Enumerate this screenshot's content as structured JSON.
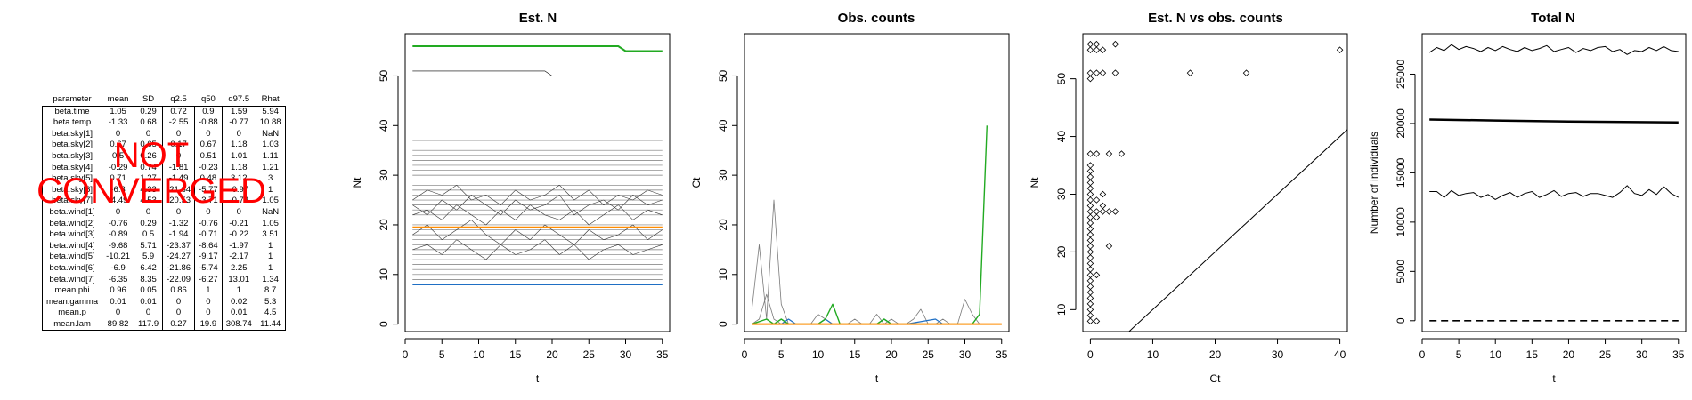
{
  "table": {
    "headers": [
      "parameter",
      "mean",
      "SD",
      "q2.5",
      "q50",
      "q97.5",
      "Rhat"
    ],
    "rows": [
      [
        "beta.time",
        "1.05",
        "0.29",
        "0.72",
        "0.9",
        "1.59",
        "5.94"
      ],
      [
        "beta.temp",
        "-1.33",
        "0.68",
        "-2.55",
        "-0.88",
        "-0.77",
        "10.88"
      ],
      [
        "beta.sky[1]",
        "0",
        "0",
        "0",
        "0",
        "0",
        "NaN"
      ],
      [
        "beta.sky[2]",
        "0.67",
        "0.65",
        "0.17",
        "0.67",
        "1.18",
        "1.03"
      ],
      [
        "beta.sky[3]",
        "0.5",
        "0.26",
        "0",
        "0.51",
        "1.01",
        "1.11"
      ],
      [
        "beta.sky[4]",
        "-0.29",
        "0.74",
        "-1.81",
        "-0.23",
        "1.18",
        "1.21"
      ],
      [
        "beta.sky[5]",
        "0.71",
        "1.27",
        "-1.49",
        "0.48",
        "3.12",
        "3"
      ],
      [
        "beta.sky[6]",
        "-6.3",
        "4.33",
        "-21.64",
        "-5.77",
        "-0.97",
        "1"
      ],
      [
        "beta.sky[7]",
        "-4.49",
        "4.53",
        "-20.53",
        "-3.71",
        "-0.78",
        "1.05"
      ],
      [
        "beta.wind[1]",
        "0",
        "0",
        "0",
        "0",
        "0",
        "NaN"
      ],
      [
        "beta.wind[2]",
        "-0.76",
        "0.29",
        "-1.32",
        "-0.76",
        "-0.21",
        "1.05"
      ],
      [
        "beta.wind[3]",
        "-0.89",
        "0.5",
        "-1.94",
        "-0.71",
        "-0.22",
        "3.51"
      ],
      [
        "beta.wind[4]",
        "-9.68",
        "5.71",
        "-23.37",
        "-8.64",
        "-1.97",
        "1"
      ],
      [
        "beta.wind[5]",
        "-10.21",
        "5.9",
        "-24.27",
        "-9.17",
        "-2.17",
        "1"
      ],
      [
        "beta.wind[6]",
        "-6.9",
        "6.42",
        "-21.86",
        "-5.74",
        "2.25",
        "1"
      ],
      [
        "beta.wind[7]",
        "-6.35",
        "8.35",
        "-22.09",
        "-6.27",
        "13.01",
        "1.34"
      ],
      [
        "mean.phi",
        "0.96",
        "0.05",
        "0.86",
        "1",
        "1",
        "8.7"
      ],
      [
        "mean.gamma",
        "0.01",
        "0.01",
        "0",
        "0",
        "0.02",
        "5.3"
      ],
      [
        "mean.p",
        "0",
        "0",
        "0",
        "0",
        "0.01",
        "4.5"
      ],
      [
        "mean.lam",
        "89.82",
        "117.9",
        "0.27",
        "19.9",
        "308.74",
        "11.44"
      ]
    ]
  },
  "overlay": {
    "line1": "NOT",
    "line2": "CONVERGED",
    "color": "#ff0000"
  },
  "chart_data": [
    {
      "id": "estN",
      "type": "line",
      "title": "Est. N",
      "xlabel": "t",
      "ylabel": "Nt",
      "xlim": [
        0,
        36
      ],
      "ylim": [
        -1.5,
        58.5
      ],
      "xticks": [
        0,
        5,
        10,
        15,
        20,
        25,
        30,
        35
      ],
      "yticks": [
        0,
        10,
        20,
        30,
        40,
        50
      ],
      "constant_lines": {
        "color": "#7a7a7a",
        "levels": [
          9,
          10,
          11,
          12,
          13,
          14,
          15,
          16,
          17,
          18,
          19,
          20,
          21,
          22,
          23,
          24,
          25,
          26,
          27,
          28,
          29,
          30,
          31,
          32,
          33,
          34,
          35,
          37
        ],
        "x": [
          1,
          35
        ]
      },
      "series": [
        {
          "color": "#000000",
          "width": 0.6,
          "x": [
            1,
            19,
            20,
            35
          ],
          "y": [
            51,
            51,
            50,
            50
          ]
        },
        {
          "color": "#333333",
          "width": 0.6,
          "x": [
            1,
            3,
            5,
            7,
            9,
            11,
            13,
            15,
            17,
            19,
            21,
            23,
            25,
            27,
            29,
            31,
            33,
            35
          ],
          "y": [
            25,
            27,
            26,
            28,
            25,
            26,
            24,
            27,
            25,
            26,
            28,
            25,
            27,
            24,
            26,
            25,
            27,
            26
          ]
        },
        {
          "color": "#333333",
          "width": 0.6,
          "x": [
            1,
            3,
            5,
            7,
            9,
            11,
            13,
            15,
            17,
            19,
            21,
            23,
            25,
            27,
            29,
            31,
            33,
            35
          ],
          "y": [
            22,
            23,
            21,
            24,
            22,
            20,
            23,
            21,
            24,
            22,
            21,
            23,
            20,
            22,
            24,
            21,
            23,
            22
          ]
        },
        {
          "color": "#333333",
          "width": 0.6,
          "x": [
            1,
            3,
            5,
            7,
            9,
            11,
            13,
            15,
            17,
            19,
            21,
            23,
            25,
            27,
            29,
            31,
            33,
            35
          ],
          "y": [
            18,
            20,
            17,
            19,
            21,
            18,
            16,
            19,
            17,
            20,
            18,
            16,
            19,
            17,
            18,
            20,
            17,
            19
          ]
        },
        {
          "color": "#333333",
          "width": 0.6,
          "x": [
            1,
            3,
            5,
            7,
            9,
            11,
            13,
            15,
            17,
            19,
            21,
            23,
            25,
            27,
            29,
            31,
            33,
            35
          ],
          "y": [
            15,
            16,
            14,
            17,
            15,
            13,
            16,
            14,
            15,
            17,
            14,
            16,
            13,
            15,
            16,
            14,
            15,
            16
          ]
        },
        {
          "color": "#333333",
          "width": 0.6,
          "x": [
            1,
            3,
            5,
            7,
            9,
            11,
            13,
            15,
            17,
            19,
            21,
            23,
            25,
            27,
            29,
            31,
            33,
            35
          ],
          "y": [
            24,
            22,
            25,
            23,
            26,
            24,
            22,
            25,
            23,
            24,
            26,
            22,
            24,
            25,
            23,
            26,
            24,
            25
          ]
        },
        {
          "name": "",
          "color": "#ff8c00",
          "width": 2,
          "x": [
            1,
            35
          ],
          "y": [
            19.5,
            19.5
          ]
        },
        {
          "name": "",
          "color": "#1f6fc4",
          "width": 2,
          "x": [
            1,
            35
          ],
          "y": [
            8,
            8
          ]
        },
        {
          "name": "",
          "color": "#22aa22",
          "width": 2,
          "x": [
            1,
            29,
            30,
            35
          ],
          "y": [
            56,
            56,
            55,
            55
          ]
        }
      ]
    },
    {
      "id": "obs",
      "type": "line",
      "title": "Obs. counts",
      "xlabel": "t",
      "ylabel": "Ct",
      "xlim": [
        0,
        36
      ],
      "ylim": [
        -1.5,
        58.5
      ],
      "xticks": [
        0,
        5,
        10,
        15,
        20,
        25,
        30,
        35
      ],
      "yticks": [
        0,
        10,
        20,
        30,
        40,
        50
      ],
      "series": [
        {
          "color": "#7a7a7a",
          "width": 0.8,
          "x": [
            1,
            2,
            3,
            4,
            5,
            6,
            7,
            8,
            9,
            10,
            11,
            12,
            13,
            14
          ],
          "y": [
            3,
            16,
            1,
            25,
            4,
            0,
            0,
            0,
            0,
            2,
            1,
            0,
            0,
            0
          ]
        },
        {
          "color": "#7a7a7a",
          "width": 0.8,
          "x": [
            1,
            2,
            3,
            4,
            5
          ],
          "y": [
            0,
            1,
            6,
            1,
            0
          ]
        },
        {
          "color": "#7a7a7a",
          "width": 0.8,
          "x": [
            14,
            15,
            16,
            17,
            18,
            19,
            20,
            21,
            22,
            23,
            24,
            25,
            26,
            27,
            28,
            29,
            30,
            31,
            32,
            33,
            34,
            35
          ],
          "y": [
            0,
            1,
            0,
            0,
            2,
            0,
            1,
            0,
            0,
            1,
            3,
            0,
            0,
            1,
            0,
            0,
            5,
            2,
            0,
            0,
            0,
            0
          ]
        },
        {
          "color": "#1f6fc4",
          "width": 1.2,
          "x": [
            1,
            5,
            6,
            7,
            8,
            10,
            11,
            12,
            13,
            14,
            18,
            19,
            20,
            22,
            26,
            27,
            28,
            33,
            34,
            35
          ],
          "y": [
            0,
            0,
            1,
            0,
            0,
            0,
            1,
            0,
            0,
            0,
            0,
            1,
            0,
            0,
            1,
            0,
            0,
            0,
            0,
            0
          ]
        },
        {
          "color": "#22aa22",
          "width": 1.4,
          "x": [
            1,
            3,
            4,
            5,
            6,
            7,
            10,
            11,
            12,
            13,
            18,
            19,
            20,
            31,
            32,
            33
          ],
          "y": [
            0,
            1,
            0,
            1,
            0,
            0,
            0,
            1,
            4,
            0,
            0,
            1,
            0,
            0,
            2,
            40
          ]
        },
        {
          "color": "#ff8c00",
          "width": 2,
          "x": [
            1,
            35
          ],
          "y": [
            0,
            0
          ]
        }
      ]
    },
    {
      "id": "scatter",
      "type": "scatter",
      "title": "Est. N vs obs. counts",
      "xlabel": "Ct",
      "ylabel": "Nt",
      "xlim": [
        -1.2,
        41.2
      ],
      "ylim": [
        6.2,
        57.8
      ],
      "xticks": [
        0,
        10,
        20,
        30,
        40
      ],
      "yticks": [
        10,
        20,
        30,
        40,
        50
      ],
      "marker": "diamond",
      "column_x0": {
        "x": 0,
        "y_from": 8,
        "y_to": 35,
        "step": 1
      },
      "points": [
        [
          0,
          37
        ],
        [
          0,
          51
        ],
        [
          0,
          55
        ],
        [
          0,
          56
        ],
        [
          0,
          50
        ],
        [
          1,
          8
        ],
        [
          1,
          16
        ],
        [
          1,
          26
        ],
        [
          1,
          27
        ],
        [
          1,
          29
        ],
        [
          1,
          37
        ],
        [
          1,
          51
        ],
        [
          1,
          55
        ],
        [
          1,
          56
        ],
        [
          2,
          27
        ],
        [
          2,
          28
        ],
        [
          2,
          30
        ],
        [
          2,
          51
        ],
        [
          2,
          55
        ],
        [
          3,
          21
        ],
        [
          3,
          27
        ],
        [
          3,
          37
        ],
        [
          4,
          27
        ],
        [
          4,
          51
        ],
        [
          4,
          56
        ],
        [
          5,
          37
        ],
        [
          16,
          51
        ],
        [
          25,
          51
        ],
        [
          40,
          55
        ]
      ],
      "identity_line": true
    },
    {
      "id": "total",
      "type": "line",
      "title": "Total N",
      "xlabel": "t",
      "ylabel": "Number of individuals",
      "xlim": [
        0,
        36
      ],
      "ylim": [
        -1100,
        29100
      ],
      "xticks": [
        0,
        5,
        10,
        15,
        20,
        25,
        30,
        35
      ],
      "yticks": [
        0,
        5000,
        10000,
        15000,
        20000,
        25000
      ],
      "series": [
        {
          "color": "#000000",
          "width": 1,
          "x": [
            1,
            2,
            3,
            4,
            5,
            6,
            7,
            8,
            9,
            10,
            11,
            12,
            13,
            14,
            15,
            16,
            17,
            18,
            19,
            20,
            21,
            22,
            23,
            24,
            25,
            26,
            27,
            28,
            29,
            30,
            31,
            32,
            33,
            34,
            35
          ],
          "y": [
            27200,
            27700,
            27400,
            28000,
            27500,
            27800,
            27600,
            27300,
            27700,
            27400,
            27800,
            27500,
            27300,
            27700,
            27400,
            27600,
            27900,
            27300,
            27500,
            27700,
            27200,
            27600,
            27400,
            27700,
            27800,
            27300,
            27500,
            27000,
            27400,
            27300,
            27700,
            27400,
            27800,
            27400,
            27300
          ]
        },
        {
          "color": "#000000",
          "width": 2.5,
          "x": [
            1,
            10,
            20,
            35
          ],
          "y": [
            20400,
            20300,
            20200,
            20100
          ]
        },
        {
          "color": "#000000",
          "width": 1,
          "x": [
            1,
            2,
            3,
            4,
            5,
            6,
            7,
            8,
            9,
            10,
            11,
            12,
            13,
            14,
            15,
            16,
            17,
            18,
            19,
            20,
            21,
            22,
            23,
            24,
            25,
            26,
            27,
            28,
            29,
            30,
            31,
            32,
            33,
            34,
            35
          ],
          "y": [
            13100,
            13100,
            12500,
            13200,
            12700,
            12900,
            13000,
            12500,
            12800,
            12300,
            12700,
            13000,
            12500,
            12900,
            13100,
            12500,
            12800,
            13200,
            12600,
            12900,
            13000,
            12600,
            12900,
            12900,
            12700,
            12500,
            13000,
            13700,
            12900,
            12700,
            13300,
            12800,
            13600,
            12900,
            12500
          ]
        },
        {
          "color": "#000000",
          "width": 1.6,
          "dash": true,
          "x": [
            1,
            35
          ],
          "y": [
            0,
            0
          ]
        }
      ]
    }
  ]
}
